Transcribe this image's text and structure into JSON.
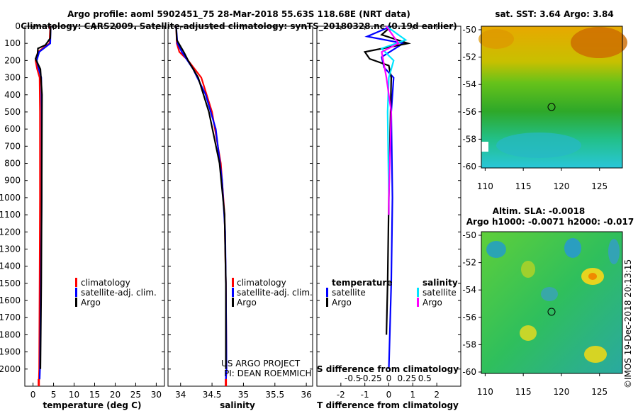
{
  "header": {
    "line1": "Argo profile: aoml 5902451_75 28-Mar-2018 55.63S 118.68E (NRT data)",
    "line2": "Climatology: CARS2009. Satellite-adjusted climatology: synTS_20180328.nc (0.19d earlier)"
  },
  "colors": {
    "climatology": "#ff0000",
    "satellite": "#0000ff",
    "argo": "#000000",
    "satellite_s": "#00e5ff",
    "argo_s": "#ff00ff"
  },
  "chart_data": [
    {
      "type": "line",
      "panel": "temperature",
      "xlabel": "temperature (deg C)",
      "ylabel": "",
      "xlim": [
        -2,
        32
      ],
      "ylim": [
        2100,
        0
      ],
      "xticks": [
        "0",
        "5",
        "10",
        "15",
        "20",
        "25",
        "30"
      ],
      "xtick_values": [
        0,
        5,
        10,
        15,
        20,
        25,
        30
      ],
      "yticks": [
        "0",
        "100",
        "200",
        "300",
        "400",
        "500",
        "600",
        "700",
        "800",
        "900",
        "1000",
        "1100",
        "1200",
        "1300",
        "1400",
        "1500",
        "1600",
        "1700",
        "1800",
        "1900",
        "2000"
      ],
      "ytick_values": [
        0,
        100,
        200,
        300,
        400,
        500,
        600,
        700,
        800,
        900,
        1000,
        1100,
        1200,
        1300,
        1400,
        1500,
        1600,
        1700,
        1800,
        1900,
        2000
      ],
      "legend": [
        "climatology",
        "satellite-adj. clim.",
        "Argo"
      ],
      "series": [
        {
          "name": "climatology",
          "color": "#ff0000",
          "x": [
            4.2,
            4.0,
            1.2,
            0.6,
            1.0,
            1.6,
            1.7,
            1.7,
            1.6,
            1.5,
            1.4
          ],
          "y": [
            0,
            100,
            150,
            200,
            250,
            300,
            500,
            1000,
            1500,
            2000,
            2080
          ]
        },
        {
          "name": "satellite-adj. clim.",
          "color": "#0000ff",
          "x": [
            4.3,
            4.2,
            1.5,
            0.9,
            1.4,
            2.0,
            2.1,
            2.1,
            1.9,
            1.7,
            1.6
          ],
          "y": [
            0,
            100,
            150,
            200,
            250,
            300,
            500,
            1000,
            1500,
            2000,
            2060
          ]
        },
        {
          "name": "Argo",
          "color": "#000000",
          "x": [
            4.3,
            4.2,
            3.0,
            1.2,
            1.1,
            0.6,
            1.8,
            2.2,
            2.1,
            2.0,
            1.8
          ],
          "y": [
            0,
            70,
            110,
            130,
            160,
            190,
            250,
            400,
            1000,
            1500,
            2000
          ]
        }
      ]
    },
    {
      "type": "line",
      "panel": "salinity",
      "xlabel": "salinity",
      "ylabel": "",
      "xlim": [
        33.8,
        36.1
      ],
      "ylim": [
        2100,
        0
      ],
      "xticks": [
        "34",
        "34.5",
        "35",
        "35.5",
        "36"
      ],
      "xtick_values": [
        34,
        34.5,
        35,
        35.5,
        36
      ],
      "legend": [
        "climatology",
        "satellite-adj. clim.",
        "Argo"
      ],
      "annotations": [
        "US ARGO PROJECT",
        "PI: DEAN ROEMMICH"
      ],
      "series": [
        {
          "name": "climatology",
          "color": "#ff0000",
          "x": [
            33.93,
            33.94,
            33.98,
            34.12,
            34.33,
            34.5,
            34.64,
            34.7,
            34.72,
            34.73,
            34.72
          ],
          "y": [
            0,
            100,
            150,
            200,
            300,
            500,
            800,
            1100,
            1500,
            2000,
            2080
          ]
        },
        {
          "name": "satellite-adj. clim.",
          "color": "#0000ff",
          "x": [
            33.93,
            33.95,
            34.02,
            34.2,
            34.4,
            34.56,
            34.66,
            34.71,
            34.72,
            34.73,
            34.72
          ],
          "y": [
            0,
            100,
            150,
            250,
            400,
            600,
            900,
            1200,
            1500,
            2000,
            2060
          ]
        },
        {
          "name": "Argo",
          "color": "#000000",
          "x": [
            33.93,
            33.94,
            34.05,
            34.12,
            34.28,
            34.45,
            34.62,
            34.7,
            34.72,
            34.72
          ],
          "y": [
            0,
            80,
            150,
            200,
            300,
            500,
            800,
            1100,
            1500,
            2000
          ]
        }
      ]
    },
    {
      "type": "line",
      "panel": "difference",
      "xlabel": "T difference from climatology",
      "top_label": "S difference from climatology",
      "xlim": [
        -3,
        3
      ],
      "ylim": [
        2100,
        0
      ],
      "xticks": [
        "-2",
        "-1",
        "0",
        "1",
        "2"
      ],
      "xtick_values": [
        -2,
        -1,
        0,
        1,
        2
      ],
      "s_xticks": [
        "-0.5",
        "-0.25",
        "0",
        "0.25",
        "0.5"
      ],
      "s_xtick_values": [
        -0.5,
        -0.25,
        0,
        0.25,
        0.5
      ],
      "legend_t_title": "temperature",
      "legend_s_title": "salinity",
      "legend_t": [
        "satellite",
        "Argo"
      ],
      "legend_s": [
        "satellite",
        "Argo"
      ],
      "series": [
        {
          "name": "T satellite",
          "color": "#0000ff",
          "x": [
            0.1,
            -0.9,
            0.6,
            -0.3,
            -0.2,
            0.2,
            0.1,
            0.15,
            0.1,
            0.0
          ],
          "y": [
            0,
            60,
            100,
            180,
            240,
            300,
            500,
            1000,
            1500,
            2000
          ]
        },
        {
          "name": "T Argo",
          "color": "#000000",
          "x": [
            0.1,
            -0.3,
            0.8,
            -1.0,
            -0.8,
            0.0,
            0.1,
            0.0,
            -0.05,
            -0.1
          ],
          "y": [
            0,
            50,
            100,
            150,
            190,
            230,
            300,
            1000,
            1500,
            1800
          ]
        },
        {
          "name": "S satellite",
          "color": "#00e5ff",
          "x": [
            -0.1,
            0.7,
            -0.3,
            0.2,
            0.0,
            -0.05,
            0.0,
            0.0
          ],
          "y": [
            0,
            80,
            130,
            200,
            300,
            500,
            1000,
            1100
          ]
        },
        {
          "name": "S Argo",
          "color": "#ff00ff",
          "x": [
            -0.1,
            0.4,
            -0.3,
            -0.1,
            0.1,
            0.0,
            0.0
          ],
          "y": [
            0,
            100,
            150,
            300,
            500,
            1000,
            1100
          ]
        }
      ]
    }
  ],
  "maps": {
    "sst_title": "sat. SST: 3.64 Argo: 3.84",
    "sla_title1": "Altim. SLA: -0.0018",
    "sla_title2": "Argo h1000: -0.0071 h2000: -0.017",
    "lon_ticks": [
      "110",
      "115",
      "120",
      "125"
    ],
    "lat_ticks": [
      "-50",
      "-52",
      "-54",
      "-56",
      "-58",
      "-60"
    ],
    "watermark": "©IMOS 19-Dec-2018 20:13:15"
  }
}
